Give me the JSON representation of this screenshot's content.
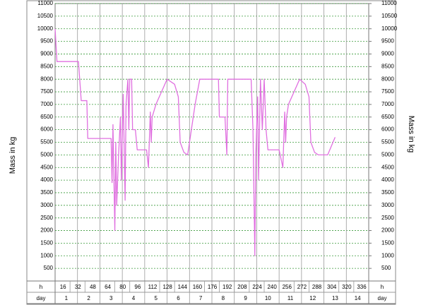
{
  "chart_data": {
    "type": "line",
    "y_label": "Mass in kg",
    "y2_label": "Mass in kg",
    "color": "#e070e0",
    "x": [
      0,
      2,
      25,
      28,
      34,
      35,
      60,
      61,
      62,
      64,
      65,
      66,
      68,
      70,
      71,
      73,
      75,
      76,
      78,
      79,
      80,
      82,
      83,
      86,
      88,
      98,
      100,
      102,
      103,
      104,
      108,
      120,
      128,
      132,
      134,
      138,
      142,
      146,
      150,
      155,
      175,
      176,
      182,
      184,
      185,
      210,
      212,
      214,
      215,
      217,
      218,
      220,
      222,
      224,
      226,
      228,
      240,
      244,
      246,
      247,
      248,
      250,
      262,
      268,
      272,
      274,
      278,
      282,
      292,
      300
    ],
    "values": [
      10000,
      8700,
      8700,
      7150,
      7150,
      5650,
      5650,
      3900,
      6200,
      2000,
      5500,
      3000,
      5000,
      6500,
      4000,
      7400,
      3200,
      7000,
      8000,
      6000,
      8000,
      8000,
      6000,
      6000,
      5200,
      5200,
      4500,
      6700,
      5500,
      6500,
      7000,
      8000,
      7800,
      7300,
      5500,
      5100,
      5000,
      6000,
      7000,
      8000,
      8000,
      6500,
      6500,
      5000,
      8000,
      8000,
      6000,
      1000,
      5000,
      7300,
      4000,
      8000,
      6000,
      8000,
      6000,
      5200,
      5200,
      4500,
      6700,
      5500,
      6500,
      7000,
      8000,
      7800,
      7300,
      5500,
      5100,
      5000,
      5000,
      5700
    ],
    "xlim": [
      0,
      336
    ],
    "xticks": [
      16,
      32,
      48,
      64,
      80,
      96,
      112,
      128,
      144,
      160,
      176,
      192,
      208,
      224,
      240,
      256,
      272,
      288,
      304,
      320,
      336
    ],
    "x_row_label": "h",
    "day_row": {
      "label": "day",
      "categories": [
        "1",
        "2",
        "3",
        "4",
        "5",
        "6",
        "7",
        "8",
        "9",
        "10",
        "11",
        "12",
        "13",
        "14"
      ]
    },
    "ylim": [
      0,
      11000
    ],
    "yticks": [
      500,
      1000,
      1500,
      2000,
      2500,
      3000,
      3500,
      4000,
      4500,
      5000,
      5500,
      6000,
      6500,
      7000,
      7500,
      8000,
      8500,
      9000,
      9500,
      10000,
      10500,
      11000
    ],
    "y2lim": [
      0,
      11000
    ],
    "y2ticks": [
      500,
      1000,
      1500,
      2000,
      2500,
      3000,
      3500,
      4000,
      4500,
      5000,
      5500,
      6000,
      6500,
      7000,
      7500,
      8000,
      8500,
      9000,
      9500,
      10000,
      10500,
      11000
    ],
    "grid": true
  }
}
